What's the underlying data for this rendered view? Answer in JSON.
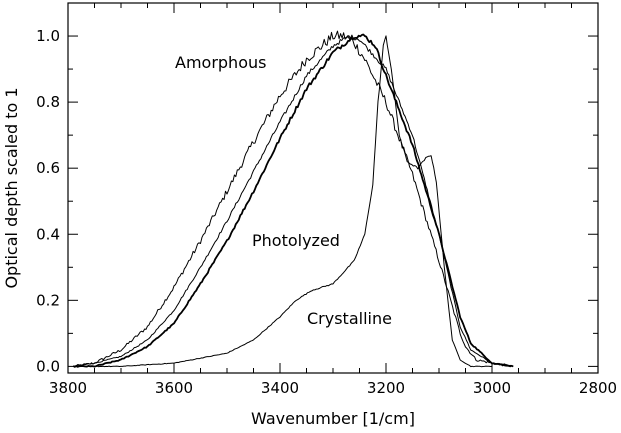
{
  "chart_data": {
    "type": "line",
    "title": "",
    "xlabel": "Wavenumber [1/cm]",
    "ylabel": "Optical depth scaled to 1",
    "xlim": [
      3800,
      2800
    ],
    "ylim": [
      -0.02,
      1.1
    ],
    "x_reversed": true,
    "grid": false,
    "legend": "none",
    "x_ticks": [
      "3800",
      "3600",
      "3400",
      "3200",
      "3000",
      "2800"
    ],
    "y_ticks": [
      "0.0",
      "0.2",
      "0.4",
      "0.6",
      "0.8",
      "1.0"
    ],
    "annotations": [
      "Amorphous",
      "Photolyzed",
      "Crystalline"
    ],
    "series": [
      {
        "annotation_index": 0,
        "noise": 0.012,
        "stroke_width": 1.0,
        "x": [
          3790,
          3750,
          3700,
          3650,
          3600,
          3550,
          3500,
          3450,
          3400,
          3350,
          3300,
          3280,
          3260,
          3240,
          3200,
          3150,
          3100,
          3060,
          3050,
          3030,
          3000,
          2960
        ],
        "y": [
          0.0,
          0.01,
          0.05,
          0.12,
          0.24,
          0.38,
          0.53,
          0.68,
          0.82,
          0.93,
          1.0,
          1.0,
          0.98,
          0.93,
          0.8,
          0.58,
          0.32,
          0.1,
          0.06,
          0.02,
          0.01,
          0.0
        ]
      },
      {
        "annotation_index": 1,
        "noise": 0.005,
        "stroke_width": 1.0,
        "x": [
          3790,
          3750,
          3700,
          3650,
          3600,
          3550,
          3500,
          3450,
          3400,
          3350,
          3300,
          3270,
          3250,
          3200,
          3150,
          3100,
          3060,
          3040,
          3000,
          2960
        ],
        "y": [
          0.0,
          0.01,
          0.03,
          0.08,
          0.17,
          0.3,
          0.44,
          0.59,
          0.74,
          0.88,
          0.97,
          1.0,
          0.99,
          0.9,
          0.7,
          0.4,
          0.12,
          0.05,
          0.01,
          0.0
        ]
      },
      {
        "annotation_index": -1,
        "noise": 0.005,
        "stroke_width": 1.8,
        "x": [
          3790,
          3750,
          3700,
          3650,
          3600,
          3550,
          3500,
          3450,
          3400,
          3350,
          3300,
          3260,
          3240,
          3220,
          3200,
          3150,
          3100,
          3060,
          3040,
          3000,
          2960
        ],
        "y": [
          0.0,
          0.0,
          0.02,
          0.06,
          0.13,
          0.25,
          0.38,
          0.53,
          0.69,
          0.84,
          0.95,
          1.0,
          1.0,
          0.97,
          0.88,
          0.67,
          0.4,
          0.15,
          0.07,
          0.01,
          0.0
        ]
      },
      {
        "annotation_index": 2,
        "noise": 0.003,
        "stroke_width": 1.0,
        "x": [
          3790,
          3700,
          3600,
          3500,
          3450,
          3400,
          3370,
          3340,
          3300,
          3260,
          3240,
          3225,
          3215,
          3205,
          3200,
          3190,
          3175,
          3160,
          3140,
          3125,
          3115,
          3105,
          3090,
          3075,
          3060,
          3040,
          3000
        ],
        "y": [
          0.0,
          0.0,
          0.01,
          0.04,
          0.08,
          0.15,
          0.2,
          0.23,
          0.25,
          0.32,
          0.4,
          0.55,
          0.8,
          0.97,
          1.0,
          0.9,
          0.7,
          0.62,
          0.6,
          0.63,
          0.64,
          0.56,
          0.3,
          0.08,
          0.02,
          0.0,
          0.0
        ]
      }
    ]
  }
}
